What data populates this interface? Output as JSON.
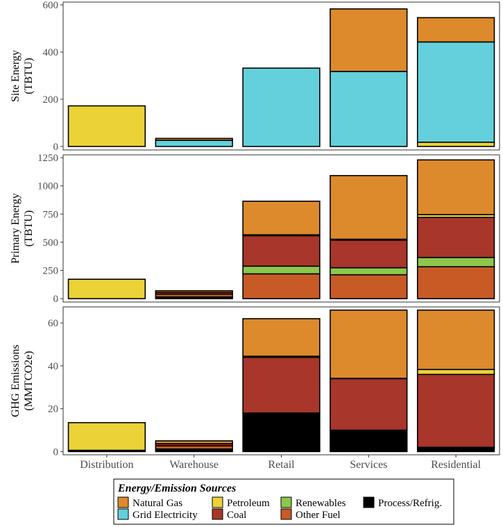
{
  "chart_data": {
    "type": "bar",
    "stacked": true,
    "categories": [
      "Distribution",
      "Warehouse",
      "Retail",
      "Services",
      "Residential"
    ],
    "colors": {
      "Natural Gas": "#dd8a2c",
      "Grid Electricity": "#63d0dc",
      "Petroleum": "#ebd236",
      "Coal": "#a8362a",
      "Renewables": "#8cc84b",
      "Other Fuel": "#c85a26",
      "Process/Refrig.": "#000000"
    },
    "legend": {
      "title": "Energy/Emission Sources",
      "placement": "bottom",
      "entries": [
        "Natural Gas",
        "Grid Electricity",
        "Petroleum",
        "Coal",
        "Renewables",
        "Other Fuel",
        "Process/Refrig."
      ]
    },
    "panels": [
      {
        "ylabel_lines": [
          "Site Energy",
          "(TBTU)"
        ],
        "ylim": [
          -15,
          612
        ],
        "ticks": [
          0,
          200,
          400,
          600
        ],
        "stack_order": [
          "Petroleum",
          "Grid Electricity",
          "Natural Gas"
        ],
        "series": [
          {
            "name": "Petroleum",
            "values": [
              172,
              0,
              0,
              0,
              18
            ]
          },
          {
            "name": "Grid Electricity",
            "values": [
              0,
              26,
              332,
              318,
              425
            ]
          },
          {
            "name": "Natural Gas",
            "values": [
              0,
              8,
              0,
              265,
              103
            ]
          }
        ]
      },
      {
        "ylabel_lines": [
          "Primary Energy",
          "(TBTU)"
        ],
        "ylim": [
          -30,
          1275
        ],
        "ticks": [
          0,
          250,
          500,
          750,
          1000,
          1250
        ],
        "stack_order": [
          "Process/Refrig.",
          "Other Fuel",
          "Renewables",
          "Coal",
          "Petroleum",
          "Natural Gas"
        ],
        "series": [
          {
            "name": "Process/Refrig.",
            "values": [
              0,
              15,
              0,
              0,
              0
            ]
          },
          {
            "name": "Other Fuel",
            "values": [
              0,
              25,
              220,
              212,
              283
            ]
          },
          {
            "name": "Renewables",
            "values": [
              0,
              0,
              68,
              62,
              82
            ]
          },
          {
            "name": "Coal",
            "values": [
              0,
              15,
              270,
              245,
              355
            ]
          },
          {
            "name": "Petroleum",
            "values": [
              172,
              0,
              8,
              8,
              25
            ]
          },
          {
            "name": "Natural Gas",
            "values": [
              0,
              15,
              298,
              564,
              485
            ]
          }
        ]
      },
      {
        "ylabel_lines": [
          "GHG Emissions",
          "(MMTCO2e)"
        ],
        "ylim": [
          -1.5,
          67.5
        ],
        "ticks": [
          0,
          20,
          40,
          60
        ],
        "stack_order": [
          "Process/Refrig.",
          "Other Fuel",
          "Coal",
          "Petroleum",
          "Natural Gas"
        ],
        "series": [
          {
            "name": "Process/Refrig.",
            "values": [
              0.6,
              1.2,
              18,
              10,
              2
            ]
          },
          {
            "name": "Other Fuel",
            "values": [
              0,
              1.5,
              0,
              0,
              0
            ]
          },
          {
            "name": "Coal",
            "values": [
              0,
              1.0,
              26,
              24,
              34
            ]
          },
          {
            "name": "Petroleum",
            "values": [
              12.9,
              0,
              0.5,
              0.2,
              2.3
            ]
          },
          {
            "name": "Natural Gas",
            "values": [
              0,
              1.3,
              17.5,
              31.8,
              27.7
            ]
          }
        ]
      }
    ]
  }
}
